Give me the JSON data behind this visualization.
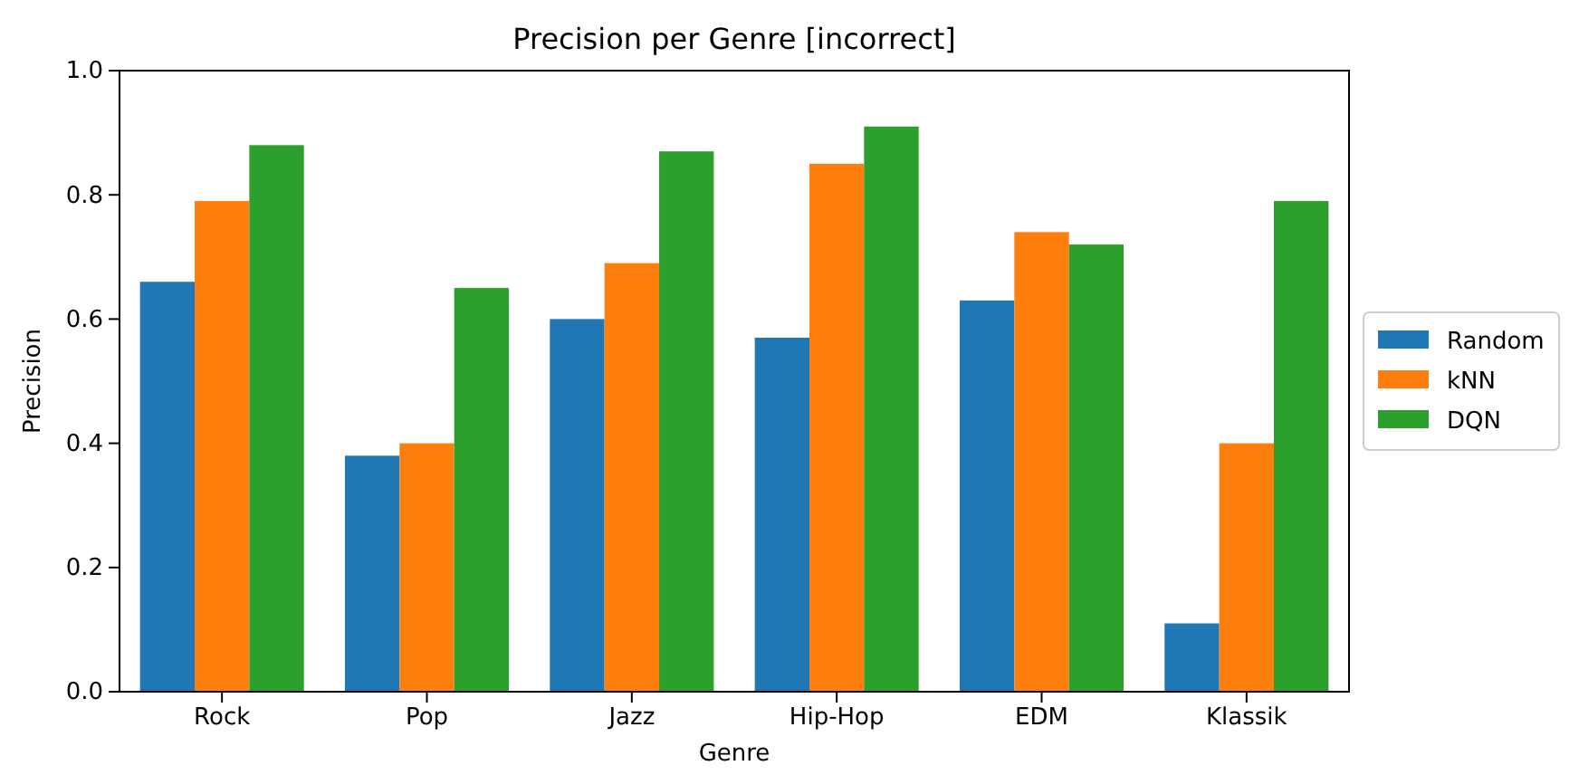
{
  "chart_data": {
    "type": "bar",
    "title": "Precision per Genre [incorrect]",
    "xlabel": "Genre",
    "ylabel": "Precision",
    "categories": [
      "Rock",
      "Pop",
      "Jazz",
      "Hip-Hop",
      "EDM",
      "Klassik"
    ],
    "series": [
      {
        "name": "Random",
        "color": "#1f77b4",
        "values": [
          0.66,
          0.38,
          0.6,
          0.57,
          0.63,
          0.11
        ]
      },
      {
        "name": "kNN",
        "color": "#ff7f0e",
        "values": [
          0.79,
          0.4,
          0.69,
          0.85,
          0.74,
          0.4
        ]
      },
      {
        "name": "DQN",
        "color": "#2ca02c",
        "values": [
          0.88,
          0.65,
          0.87,
          0.91,
          0.72,
          0.79
        ]
      }
    ],
    "ylim": [
      0,
      1
    ],
    "yticks": [
      {
        "value": 0,
        "label": "0.0"
      },
      {
        "value": 0.2,
        "label": "0.2"
      },
      {
        "value": 0.4,
        "label": "0.4"
      },
      {
        "value": 0.6,
        "label": "0.6"
      },
      {
        "value": 0.8,
        "label": "0.8"
      },
      {
        "value": 1,
        "label": "1.0"
      }
    ],
    "grid": false,
    "legend": "right"
  }
}
